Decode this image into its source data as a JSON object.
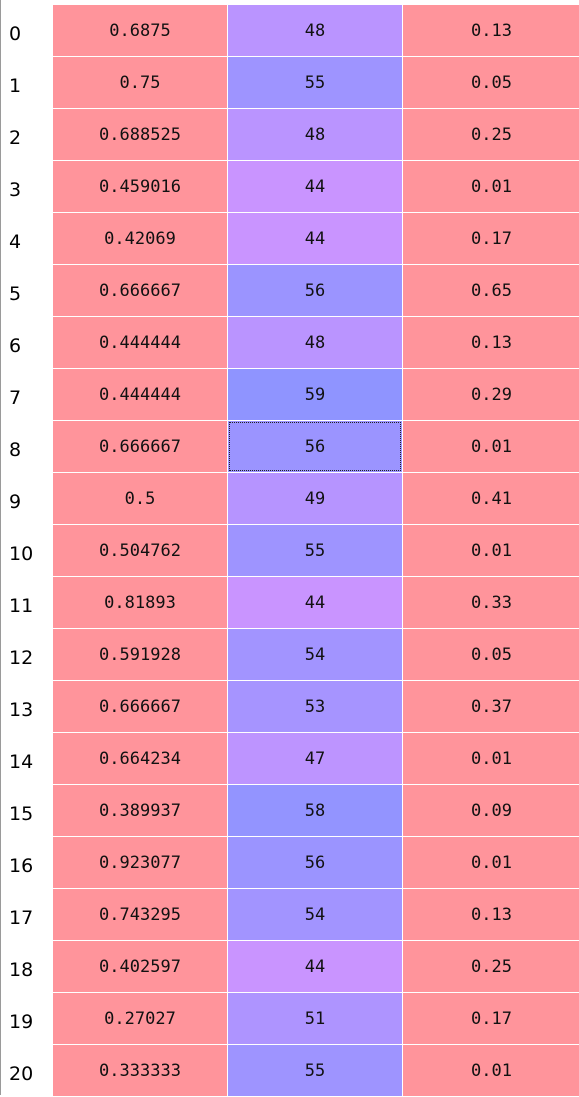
{
  "table": {
    "colors": {
      "col1": "#ff949b",
      "col3": "#ff949b",
      "col2_scale_low": "#8f94ff",
      "col2_scale_high": "#c994ff"
    },
    "selected_row": 8,
    "rows": [
      {
        "index": "0",
        "ratio": "0.6875",
        "count": "48",
        "count_value": 48,
        "score": "0.13"
      },
      {
        "index": "1",
        "ratio": "0.75",
        "count": "55",
        "count_value": 55,
        "score": "0.05"
      },
      {
        "index": "2",
        "ratio": "0.688525",
        "count": "48",
        "count_value": 48,
        "score": "0.25"
      },
      {
        "index": "3",
        "ratio": "0.459016",
        "count": "44",
        "count_value": 44,
        "score": "0.01"
      },
      {
        "index": "4",
        "ratio": "0.42069",
        "count": "44",
        "count_value": 44,
        "score": "0.17"
      },
      {
        "index": "5",
        "ratio": "0.666667",
        "count": "56",
        "count_value": 56,
        "score": "0.65"
      },
      {
        "index": "6",
        "ratio": "0.444444",
        "count": "48",
        "count_value": 48,
        "score": "0.13"
      },
      {
        "index": "7",
        "ratio": "0.444444",
        "count": "59",
        "count_value": 59,
        "score": "0.29"
      },
      {
        "index": "8",
        "ratio": "0.666667",
        "count": "56",
        "count_value": 56,
        "score": "0.01"
      },
      {
        "index": "9",
        "ratio": "0.5",
        "count": "49",
        "count_value": 49,
        "score": "0.41"
      },
      {
        "index": "10",
        "ratio": "0.504762",
        "count": "55",
        "count_value": 55,
        "score": "0.01"
      },
      {
        "index": "11",
        "ratio": "0.81893",
        "count": "44",
        "count_value": 44,
        "score": "0.33"
      },
      {
        "index": "12",
        "ratio": "0.591928",
        "count": "54",
        "count_value": 54,
        "score": "0.05"
      },
      {
        "index": "13",
        "ratio": "0.666667",
        "count": "53",
        "count_value": 53,
        "score": "0.37"
      },
      {
        "index": "14",
        "ratio": "0.664234",
        "count": "47",
        "count_value": 47,
        "score": "0.01"
      },
      {
        "index": "15",
        "ratio": "0.389937",
        "count": "58",
        "count_value": 58,
        "score": "0.09"
      },
      {
        "index": "16",
        "ratio": "0.923077",
        "count": "56",
        "count_value": 56,
        "score": "0.01"
      },
      {
        "index": "17",
        "ratio": "0.743295",
        "count": "54",
        "count_value": 54,
        "score": "0.13"
      },
      {
        "index": "18",
        "ratio": "0.402597",
        "count": "44",
        "count_value": 44,
        "score": "0.25"
      },
      {
        "index": "19",
        "ratio": "0.27027",
        "count": "51",
        "count_value": 51,
        "score": "0.17"
      },
      {
        "index": "20",
        "ratio": "0.333333",
        "count": "55",
        "count_value": 55,
        "score": "0.01"
      }
    ]
  }
}
